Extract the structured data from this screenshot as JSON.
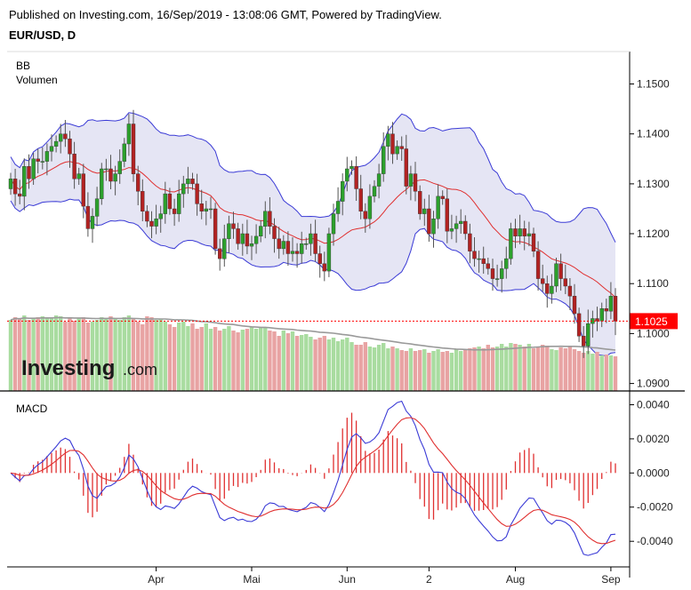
{
  "header": {
    "published": "Published on Investing.com, 16/Sep/2019 - 13:08:06 GMT, Powered by TradingView.",
    "symbol": "EUR/USD, D"
  },
  "watermark": {
    "brand_main": "Investing",
    "brand_suffix": ".com"
  },
  "colors": {
    "bull": "#2ca02c",
    "bear": "#b22222",
    "band_fill": "#dcdcf0",
    "band_line": "#3b3bd6",
    "basis": "#e03030",
    "macd_line": "#3b3bd6",
    "signal_line": "#e03030",
    "vol_bull": "#a9dca0",
    "vol_bear": "#e8a3a3",
    "price_tag": "#ff0000"
  },
  "chart_data": [
    {
      "type": "candlestick",
      "panel": "price",
      "legend": [
        "BB",
        "Volumen"
      ],
      "ylim": [
        1.0885,
        1.1565
      ],
      "yticks": [
        "1.1500",
        "1.1400",
        "1.1300",
        "1.1200",
        "1.1100",
        "1.1000",
        "1.0900"
      ],
      "last_price": 1.1025,
      "last_price_label": "1.1025",
      "xticks": [
        {
          "label": "Apr",
          "i": 32
        },
        {
          "label": "Mai",
          "i": 53
        },
        {
          "label": "Jun",
          "i": 74
        },
        {
          "label": "2",
          "i": 92
        },
        {
          "label": "Aug",
          "i": 111
        },
        {
          "label": "Sep",
          "i": 132
        }
      ],
      "close": [
        1.131,
        1.128,
        1.1275,
        1.1335,
        1.131,
        1.135,
        1.1345,
        1.1345,
        1.1365,
        1.1375,
        1.1385,
        1.14,
        1.139,
        1.136,
        1.131,
        1.132,
        1.1255,
        1.121,
        1.1235,
        1.127,
        1.133,
        1.133,
        1.1305,
        1.132,
        1.1345,
        1.138,
        1.142,
        1.132,
        1.1285,
        1.1245,
        1.1225,
        1.1215,
        1.123,
        1.124,
        1.128,
        1.125,
        1.124,
        1.128,
        1.13,
        1.131,
        1.13,
        1.126,
        1.1245,
        1.125,
        1.125,
        1.117,
        1.115,
        1.119,
        1.122,
        1.121,
        1.118,
        1.12,
        1.1175,
        1.118,
        1.1195,
        1.1215,
        1.1245,
        1.1215,
        1.119,
        1.117,
        1.1185,
        1.116,
        1.1165,
        1.116,
        1.118,
        1.118,
        1.12,
        1.116,
        1.114,
        1.1125,
        1.12,
        1.124,
        1.1265,
        1.1305,
        1.133,
        1.1335,
        1.129,
        1.1245,
        1.123,
        1.1275,
        1.1295,
        1.132,
        1.1375,
        1.14,
        1.136,
        1.1375,
        1.137,
        1.1295,
        1.132,
        1.1285,
        1.124,
        1.125,
        1.12,
        1.123,
        1.1275,
        1.127,
        1.1205,
        1.121,
        1.122,
        1.1225,
        1.12,
        1.1165,
        1.115,
        1.115,
        1.114,
        1.113,
        1.111,
        1.111,
        1.113,
        1.115,
        1.121,
        1.1195,
        1.121,
        1.1195,
        1.12,
        1.1165,
        1.111,
        1.11,
        1.108,
        1.1095,
        1.114,
        1.111,
        1.1095,
        1.1075,
        1.104,
        1.0995,
        1.0975,
        1.102,
        1.103,
        1.1025,
        1.105,
        1.1045,
        1.1075,
        1.1025
      ],
      "volume": [
        0.8,
        0.83,
        0.81,
        0.85,
        0.8,
        0.82,
        0.83,
        0.84,
        0.82,
        0.82,
        0.85,
        0.84,
        0.78,
        0.83,
        0.79,
        0.82,
        0.83,
        0.77,
        0.78,
        0.8,
        0.83,
        0.82,
        0.84,
        0.82,
        0.8,
        0.83,
        0.85,
        0.81,
        0.78,
        0.75,
        0.84,
        0.83,
        0.8,
        0.81,
        0.78,
        0.75,
        0.72,
        0.77,
        0.78,
        0.73,
        0.76,
        0.7,
        0.72,
        0.76,
        0.7,
        0.72,
        0.68,
        0.7,
        0.73,
        0.68,
        0.66,
        0.69,
        0.7,
        0.72,
        0.7,
        0.71,
        0.72,
        0.68,
        0.67,
        0.62,
        0.68,
        0.65,
        0.67,
        0.62,
        0.63,
        0.64,
        0.61,
        0.58,
        0.6,
        0.62,
        0.58,
        0.6,
        0.56,
        0.58,
        0.6,
        0.55,
        0.52,
        0.52,
        0.55,
        0.5,
        0.49,
        0.52,
        0.54,
        0.48,
        0.5,
        0.48,
        0.46,
        0.45,
        0.48,
        0.45,
        0.46,
        0.47,
        0.43,
        0.45,
        0.47,
        0.44,
        0.45,
        0.43,
        0.47,
        0.45,
        0.46,
        0.48,
        0.49,
        0.5,
        0.48,
        0.52,
        0.49,
        0.5,
        0.53,
        0.5,
        0.54,
        0.53,
        0.52,
        0.5,
        0.53,
        0.48,
        0.5,
        0.52,
        0.51,
        0.47,
        0.46,
        0.49,
        0.48,
        0.5,
        0.47,
        0.45,
        0.43,
        0.45,
        0.42,
        0.44,
        0.4,
        0.41,
        0.4,
        0.39
      ]
    },
    {
      "type": "line",
      "panel": "macd",
      "legend": [
        "MACD"
      ],
      "ylim": [
        -0.0055,
        0.0047
      ],
      "yticks": [
        "0.0040",
        "0.0020",
        "0.0000",
        "-0.0020",
        "-0.0040"
      ]
    }
  ]
}
